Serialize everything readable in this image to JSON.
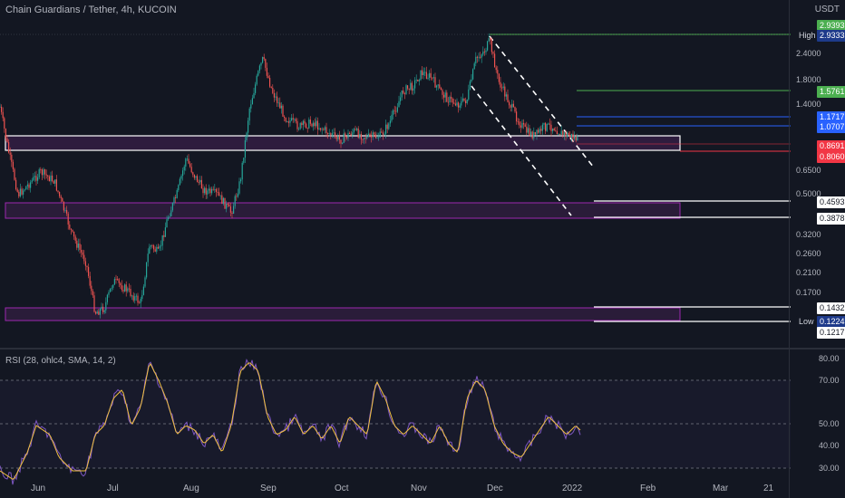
{
  "header": {
    "title": "Chain Guardians / Tether, 4h, KUCOIN",
    "currency": "USDT"
  },
  "price_axis": {
    "labels": [
      "2.4000",
      "1.8000",
      "1.4000",
      "0.6500",
      "0.5000",
      "0.3200",
      "0.2600",
      "0.2100",
      "0.1700"
    ],
    "tags": [
      {
        "text": "2.9393",
        "style": "green"
      },
      {
        "text": "High",
        "style": "hl"
      },
      {
        "text": "2.9333",
        "style": "navy"
      },
      {
        "text": "1.5761",
        "style": "green"
      },
      {
        "text": "1.1717",
        "style": "blue"
      },
      {
        "text": "1.0707",
        "style": "blue"
      },
      {
        "text": "0.8691",
        "style": "red"
      },
      {
        "text": "0.8060",
        "style": "white"
      },
      {
        "text": "0.4593",
        "style": "white"
      },
      {
        "text": "0.3878",
        "style": "white"
      },
      {
        "text": "0.1432",
        "style": "white"
      },
      {
        "text": "Low",
        "style": "hl"
      },
      {
        "text": "0.1224",
        "style": "navy"
      },
      {
        "text": "0.1217",
        "style": "white"
      }
    ]
  },
  "rsi": {
    "title": "RSI (28, ohlc4, SMA, 14, 2)",
    "labels": [
      "80.00",
      "70.00",
      "50.00",
      "40.00",
      "30.00"
    ],
    "level_upper": "70.00",
    "level_mid": "50.00",
    "level_lower": "30.00"
  },
  "time_axis": [
    "Jun",
    "Jul",
    "Aug",
    "Sep",
    "Oct",
    "Nov",
    "Dec",
    "2022",
    "Feb",
    "Mar",
    "21"
  ],
  "colors": {
    "background": "#131722",
    "candle_up": "#26a69a",
    "candle_down": "#ef5350",
    "zone_fill": "#3b1f4a",
    "zone_border": "#9c27b0",
    "rsi_line": "#7e57c2",
    "rsi_signal": "#f0c040",
    "level_green": "#4caf50",
    "level_blue": "#2962ff",
    "level_red": "#f23645"
  }
}
